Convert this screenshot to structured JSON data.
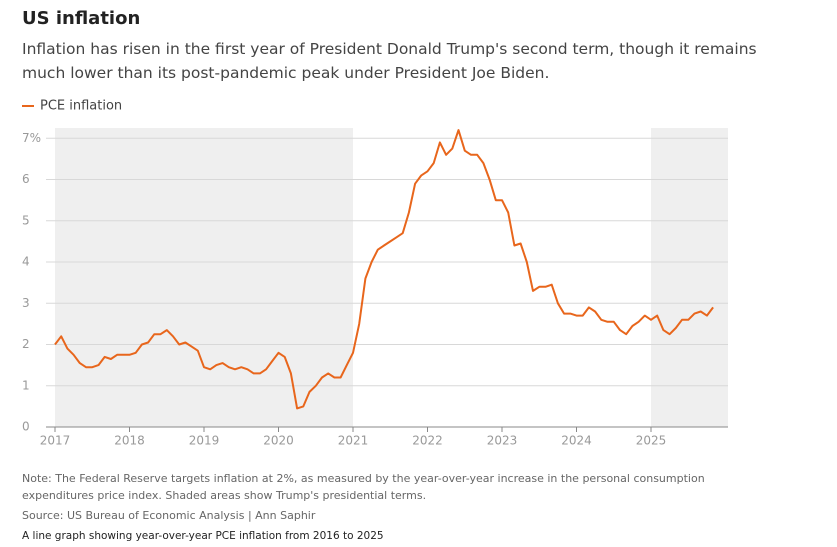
{
  "chart_data": {
    "type": "line",
    "title": "US inflation",
    "subtitle": "Inflation has risen in the first year of President Donald Trump's second term, though it remains much lower than its post-pandemic peak under President Joe Biden.",
    "note": "Note: The Federal Reserve targets inflation at 2%, as measured by the year-over-year increase in the personal consumption expenditures price index. Shaded areas show Trump's presidential terms.",
    "source": "Source: US Bureau of Economic Analysis | Ann Saphir",
    "caption": "A line graph showing year-over-year PCE inflation from 2016 to 2025",
    "categories": [
      "2017",
      null,
      null,
      null,
      null,
      null,
      null,
      null,
      null,
      null,
      null,
      null,
      "2018",
      null,
      null,
      null,
      null,
      null,
      null,
      null,
      null,
      null,
      null,
      null,
      "2019",
      null,
      null,
      null,
      null,
      null,
      null,
      null,
      null,
      null,
      null,
      null,
      "2020",
      null,
      null,
      null,
      null,
      null,
      null,
      null,
      null,
      null,
      null,
      null,
      "2021",
      null,
      null,
      null,
      null,
      null,
      null,
      null,
      null,
      null,
      null,
      null,
      "2022",
      null,
      null,
      null,
      null,
      null,
      null,
      null,
      null,
      null,
      null,
      null,
      "2023",
      null,
      null,
      null,
      null,
      null,
      null,
      null,
      null,
      null,
      null,
      null,
      "2024",
      null,
      null,
      null,
      null,
      null,
      null,
      null,
      null,
      null,
      null,
      null,
      "2025",
      null,
      null,
      null,
      null,
      null,
      null,
      null,
      null,
      null,
      null
    ],
    "series": [
      {
        "name": "PCE inflation",
        "color": "#e8661c",
        "values": [
          2.0,
          2.2,
          1.9,
          1.75,
          1.55,
          1.45,
          1.45,
          1.5,
          1.7,
          1.65,
          1.75,
          1.75,
          1.75,
          1.8,
          2.0,
          2.05,
          2.25,
          2.25,
          2.35,
          2.2,
          2.0,
          2.05,
          1.95,
          1.85,
          1.45,
          1.4,
          1.5,
          1.55,
          1.45,
          1.4,
          1.45,
          1.4,
          1.3,
          1.3,
          1.4,
          1.6,
          1.8,
          1.7,
          1.3,
          0.45,
          0.5,
          0.85,
          1.0,
          1.2,
          1.3,
          1.2,
          1.2,
          1.5,
          1.8,
          2.5,
          3.6,
          4.0,
          4.3,
          4.4,
          4.5,
          4.6,
          4.7,
          5.2,
          5.9,
          6.1,
          6.2,
          6.4,
          6.9,
          6.6,
          6.75,
          7.2,
          6.7,
          6.6,
          6.6,
          6.4,
          6.0,
          5.5,
          5.5,
          5.2,
          4.4,
          4.45,
          4.0,
          3.3,
          3.4,
          3.4,
          3.45,
          3.0,
          2.75,
          2.75,
          2.7,
          2.7,
          2.9,
          2.8,
          2.6,
          2.55,
          2.55,
          2.35,
          2.25,
          2.45,
          2.55,
          2.7,
          2.6,
          2.7,
          2.35,
          2.25,
          2.4,
          2.6,
          2.6,
          2.75,
          2.8,
          2.7,
          2.9
        ]
      }
    ],
    "shaded": [
      {
        "from": 0,
        "to": 48
      },
      {
        "from": 96,
        "to": null
      }
    ],
    "ylim": [
      0,
      7.25
    ],
    "yticks": [
      0,
      1,
      2,
      3,
      4,
      5,
      6,
      {
        "value": 7,
        "label": "7%"
      }
    ],
    "grid": true
  }
}
